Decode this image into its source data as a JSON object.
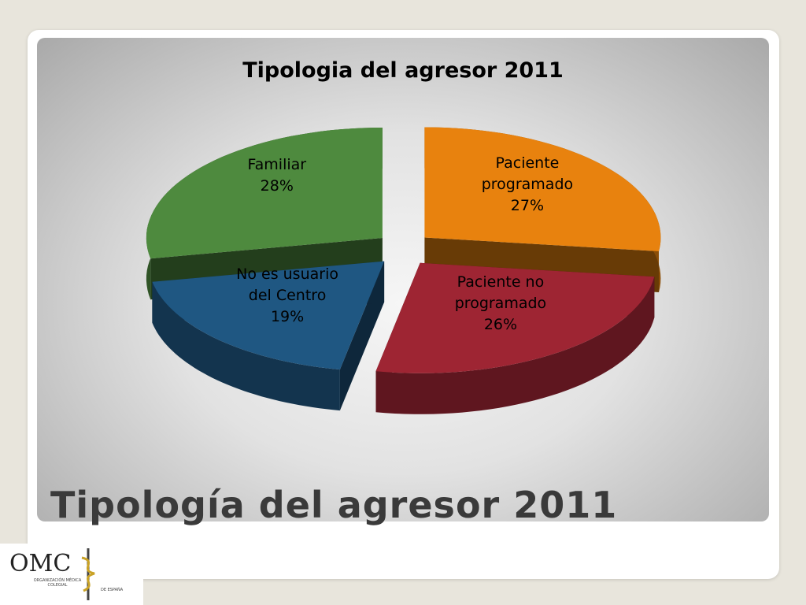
{
  "chart_data": {
    "type": "pie3d",
    "title": "Tipologia del agresor 2011",
    "categories": [
      "Paciente programado",
      "Paciente no programado",
      "No es usuario del Centro",
      "Familiar"
    ],
    "values": [
      27,
      26,
      19,
      28
    ],
    "value_labels": [
      "27%",
      "26%",
      "19%",
      "28%"
    ],
    "colors": [
      "#e8820e",
      "#9e2533",
      "#1f5782",
      "#4e8a3e"
    ]
  },
  "slide": {
    "title": "Tipología del agresor 2011",
    "logo": {
      "name": "OMC",
      "subtitle": "ORGANIZACIÓN MÉDICA COLEGIAL",
      "suffix": "DE ESPAÑA"
    }
  }
}
